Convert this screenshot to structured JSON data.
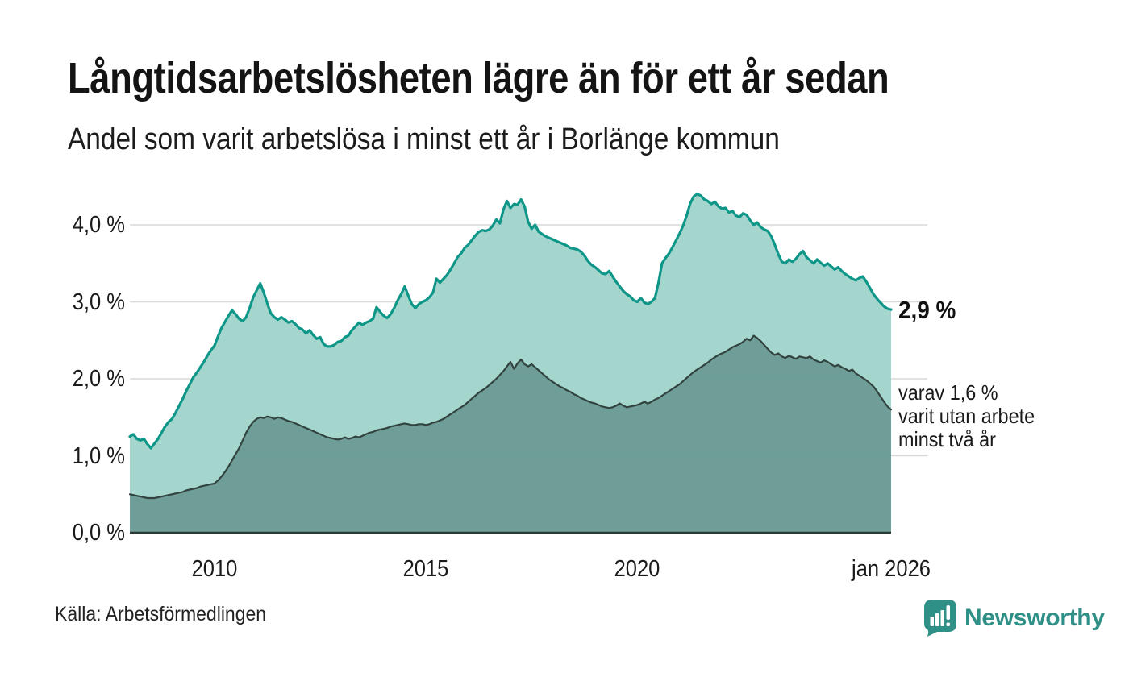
{
  "header": {
    "title": "Långtidsarbetslösheten lägre än för ett år sedan",
    "subtitle": "Andel som varit arbetslösa i minst ett år i Borlänge kommun"
  },
  "annotations": {
    "latest_total": "2,9 %",
    "secondary": [
      "varav 1,6 %",
      "varit utan arbete",
      "minst två år"
    ]
  },
  "footer": {
    "source": "Källa: Arbetsförmedlingen",
    "brand": "Newsworthy"
  },
  "colors": {
    "line_total": "#0e9688",
    "fill_total": "#9ed3ca",
    "line_two_years": "#32433f",
    "fill_two_years": "#6b9b95",
    "gridline": "#d8d8d8",
    "axis": "#2b3a37",
    "brand": "#2e9087",
    "text": "#1a1a1a"
  },
  "chart_data": {
    "type": "area",
    "title": "Långtidsarbetslösheten lägre än för ett år sedan",
    "subtitle": "Andel som varit arbetslösa i minst ett år i Borlänge kommun",
    "unit": "%",
    "interval": "monthly",
    "x_start": "2008-01",
    "x_end": "2026-01",
    "ylim": [
      0,
      4.55
    ],
    "grid": true,
    "legend": "none",
    "y_ticks": {
      "values": [
        0,
        1,
        2,
        3,
        4
      ],
      "labels": [
        "0,0 %",
        "1,0 %",
        "2,0 %",
        "3,0 %",
        "4,0 %"
      ]
    },
    "x_ticks": [
      {
        "label": "2010",
        "month_index": 24
      },
      {
        "label": "2015",
        "month_index": 84
      },
      {
        "label": "2020",
        "month_index": 144
      },
      {
        "label": "jan 2026",
        "month_index": 216
      }
    ],
    "series": [
      {
        "name": "Andel arbetslösa minst ett år",
        "latest_label": "2,9 %",
        "values": [
          1.25,
          1.28,
          1.22,
          1.2,
          1.22,
          1.15,
          1.1,
          1.16,
          1.22,
          1.3,
          1.38,
          1.44,
          1.48,
          1.56,
          1.65,
          1.74,
          1.84,
          1.93,
          2.02,
          2.08,
          2.15,
          2.22,
          2.3,
          2.37,
          2.43,
          2.55,
          2.66,
          2.74,
          2.82,
          2.89,
          2.84,
          2.78,
          2.75,
          2.8,
          2.92,
          3.06,
          3.15,
          3.24,
          3.12,
          2.98,
          2.85,
          2.8,
          2.77,
          2.8,
          2.77,
          2.73,
          2.75,
          2.71,
          2.66,
          2.64,
          2.59,
          2.63,
          2.57,
          2.52,
          2.54,
          2.45,
          2.42,
          2.42,
          2.44,
          2.48,
          2.49,
          2.54,
          2.56,
          2.63,
          2.68,
          2.73,
          2.7,
          2.73,
          2.75,
          2.78,
          2.93,
          2.87,
          2.82,
          2.79,
          2.84,
          2.92,
          3.02,
          3.1,
          3.2,
          3.08,
          2.97,
          2.92,
          2.97,
          3.0,
          3.02,
          3.06,
          3.12,
          3.3,
          3.25,
          3.3,
          3.35,
          3.42,
          3.5,
          3.58,
          3.63,
          3.7,
          3.74,
          3.8,
          3.86,
          3.91,
          3.93,
          3.92,
          3.94,
          3.99,
          4.07,
          4.02,
          4.2,
          4.31,
          4.22,
          4.27,
          4.26,
          4.33,
          4.24,
          4.04,
          3.95,
          4.0,
          3.91,
          3.88,
          3.85,
          3.83,
          3.81,
          3.79,
          3.77,
          3.75,
          3.73,
          3.7,
          3.69,
          3.68,
          3.65,
          3.6,
          3.53,
          3.48,
          3.45,
          3.41,
          3.37,
          3.36,
          3.4,
          3.33,
          3.26,
          3.2,
          3.14,
          3.1,
          3.07,
          3.02,
          3.0,
          3.05,
          2.99,
          2.97,
          3.0,
          3.05,
          3.25,
          3.5,
          3.57,
          3.63,
          3.71,
          3.8,
          3.89,
          3.99,
          4.12,
          4.28,
          4.37,
          4.4,
          4.38,
          4.33,
          4.31,
          4.27,
          4.3,
          4.24,
          4.21,
          4.22,
          4.16,
          4.18,
          4.12,
          4.1,
          4.15,
          4.13,
          4.06,
          4.0,
          4.03,
          3.97,
          3.94,
          3.92,
          3.85,
          3.74,
          3.62,
          3.52,
          3.5,
          3.55,
          3.52,
          3.56,
          3.62,
          3.66,
          3.58,
          3.54,
          3.5,
          3.55,
          3.51,
          3.47,
          3.5,
          3.46,
          3.42,
          3.45,
          3.4,
          3.36,
          3.33,
          3.3,
          3.28,
          3.31,
          3.33,
          3.26,
          3.18,
          3.1,
          3.04,
          2.99,
          2.94,
          2.91,
          2.9
        ]
      },
      {
        "name": "varav utan arbete minst två år",
        "latest_label": "1,6 %",
        "values": [
          0.5,
          0.49,
          0.48,
          0.47,
          0.46,
          0.45,
          0.45,
          0.45,
          0.46,
          0.47,
          0.48,
          0.49,
          0.5,
          0.51,
          0.52,
          0.53,
          0.55,
          0.56,
          0.57,
          0.58,
          0.6,
          0.61,
          0.62,
          0.63,
          0.64,
          0.68,
          0.73,
          0.79,
          0.86,
          0.94,
          1.02,
          1.1,
          1.2,
          1.3,
          1.38,
          1.44,
          1.48,
          1.5,
          1.49,
          1.51,
          1.5,
          1.48,
          1.5,
          1.49,
          1.47,
          1.45,
          1.44,
          1.42,
          1.4,
          1.38,
          1.36,
          1.34,
          1.32,
          1.3,
          1.28,
          1.26,
          1.24,
          1.23,
          1.22,
          1.21,
          1.22,
          1.24,
          1.22,
          1.23,
          1.25,
          1.24,
          1.26,
          1.28,
          1.3,
          1.31,
          1.33,
          1.34,
          1.35,
          1.36,
          1.38,
          1.39,
          1.4,
          1.41,
          1.42,
          1.41,
          1.4,
          1.4,
          1.41,
          1.41,
          1.4,
          1.41,
          1.43,
          1.44,
          1.46,
          1.48,
          1.51,
          1.54,
          1.57,
          1.6,
          1.63,
          1.66,
          1.7,
          1.74,
          1.78,
          1.82,
          1.85,
          1.88,
          1.92,
          1.96,
          2.0,
          2.05,
          2.1,
          2.16,
          2.22,
          2.13,
          2.2,
          2.25,
          2.19,
          2.16,
          2.19,
          2.15,
          2.11,
          2.07,
          2.03,
          1.99,
          1.96,
          1.93,
          1.9,
          1.88,
          1.85,
          1.83,
          1.8,
          1.78,
          1.75,
          1.73,
          1.71,
          1.69,
          1.68,
          1.66,
          1.64,
          1.63,
          1.62,
          1.63,
          1.65,
          1.68,
          1.65,
          1.63,
          1.64,
          1.65,
          1.66,
          1.68,
          1.7,
          1.68,
          1.7,
          1.73,
          1.75,
          1.78,
          1.81,
          1.84,
          1.87,
          1.9,
          1.93,
          1.97,
          2.01,
          2.05,
          2.09,
          2.12,
          2.15,
          2.18,
          2.21,
          2.25,
          2.28,
          2.31,
          2.33,
          2.35,
          2.38,
          2.41,
          2.43,
          2.45,
          2.48,
          2.52,
          2.5,
          2.56,
          2.53,
          2.49,
          2.44,
          2.39,
          2.34,
          2.31,
          2.33,
          2.29,
          2.27,
          2.3,
          2.28,
          2.26,
          2.29,
          2.28,
          2.27,
          2.29,
          2.25,
          2.23,
          2.21,
          2.24,
          2.22,
          2.19,
          2.16,
          2.18,
          2.15,
          2.13,
          2.1,
          2.12,
          2.07,
          2.04,
          2.01,
          1.98,
          1.94,
          1.9,
          1.84,
          1.77,
          1.7,
          1.64,
          1.6
        ]
      }
    ]
  }
}
